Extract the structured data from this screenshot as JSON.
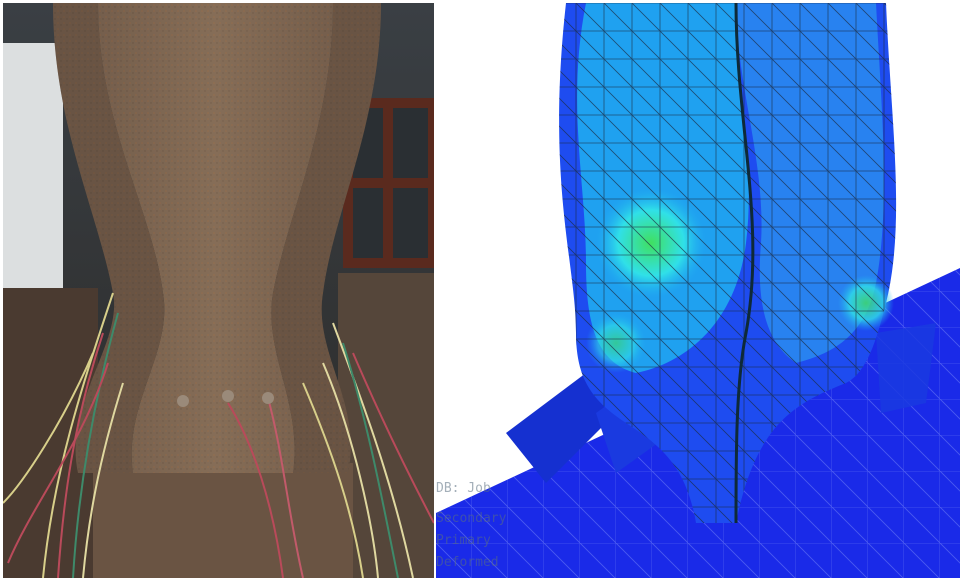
{
  "panels": {
    "left": {
      "kind": "photograph"
    },
    "right": {
      "kind": "fea-contour"
    }
  },
  "fea_label_fragments": {
    "line1": "DB: Job",
    "line2": "Secondary",
    "line3": "Primary",
    "line4": "Deformed"
  },
  "colors": {
    "steel_rust": "#7a5a3c",
    "steel_dark": "#5f4a3a",
    "fea_dark_blue": "#1020e0",
    "fea_blue": "#1e4cf0",
    "fea_light_blue": "#20b0f0",
    "fea_cyan": "#30e0e8",
    "fea_green": "#40e060"
  },
  "icons": [
    "photograph-icon",
    "fea-mesh-icon"
  ]
}
